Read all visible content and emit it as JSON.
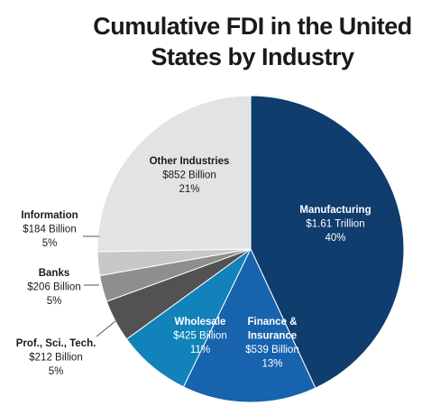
{
  "title_lines": [
    "Cumulative FDI in the United",
    "States by Industry"
  ],
  "chart_data": {
    "type": "pie",
    "title": "Cumulative FDI in the United States by Industry",
    "slices": [
      {
        "name": "Manufacturing",
        "lines": [
          "Manufacturing"
        ],
        "value_label": "$1.61 Trillion",
        "percent": 40,
        "percent_label": "40%",
        "color": "#0e3d6e"
      },
      {
        "name": "Finance & Insurance",
        "lines": [
          "Finance  &",
          "Insurance"
        ],
        "value_label": "$539 Billion",
        "percent": 13,
        "percent_label": "13%",
        "color": "#1763ad"
      },
      {
        "name": "Wholesale",
        "lines": [
          "Wholesale"
        ],
        "value_label": "$425 Billion",
        "percent": 11,
        "percent_label": "11%",
        "color": "#1282ba"
      },
      {
        "name": "Prof., Sci., Tech.",
        "lines": [
          "Prof., Sci., Tech."
        ],
        "value_label": "$212 Billion",
        "percent": 5,
        "percent_label": "5%",
        "color": "#525252"
      },
      {
        "name": "Banks",
        "lines": [
          "Banks"
        ],
        "value_label": "$206 Billion",
        "percent": 5,
        "percent_label": "5%",
        "color": "#8e8e8e"
      },
      {
        "name": "Information",
        "lines": [
          "Information"
        ],
        "value_label": "$184 Billion",
        "percent": 5,
        "percent_label": "5%",
        "color": "#c8c8c8"
      },
      {
        "name": "Other Industries",
        "lines": [
          "Other Industries"
        ],
        "value_label": "$852 Billion",
        "percent": 21,
        "percent_label": "21%",
        "color": "#e2e3e5"
      }
    ]
  }
}
